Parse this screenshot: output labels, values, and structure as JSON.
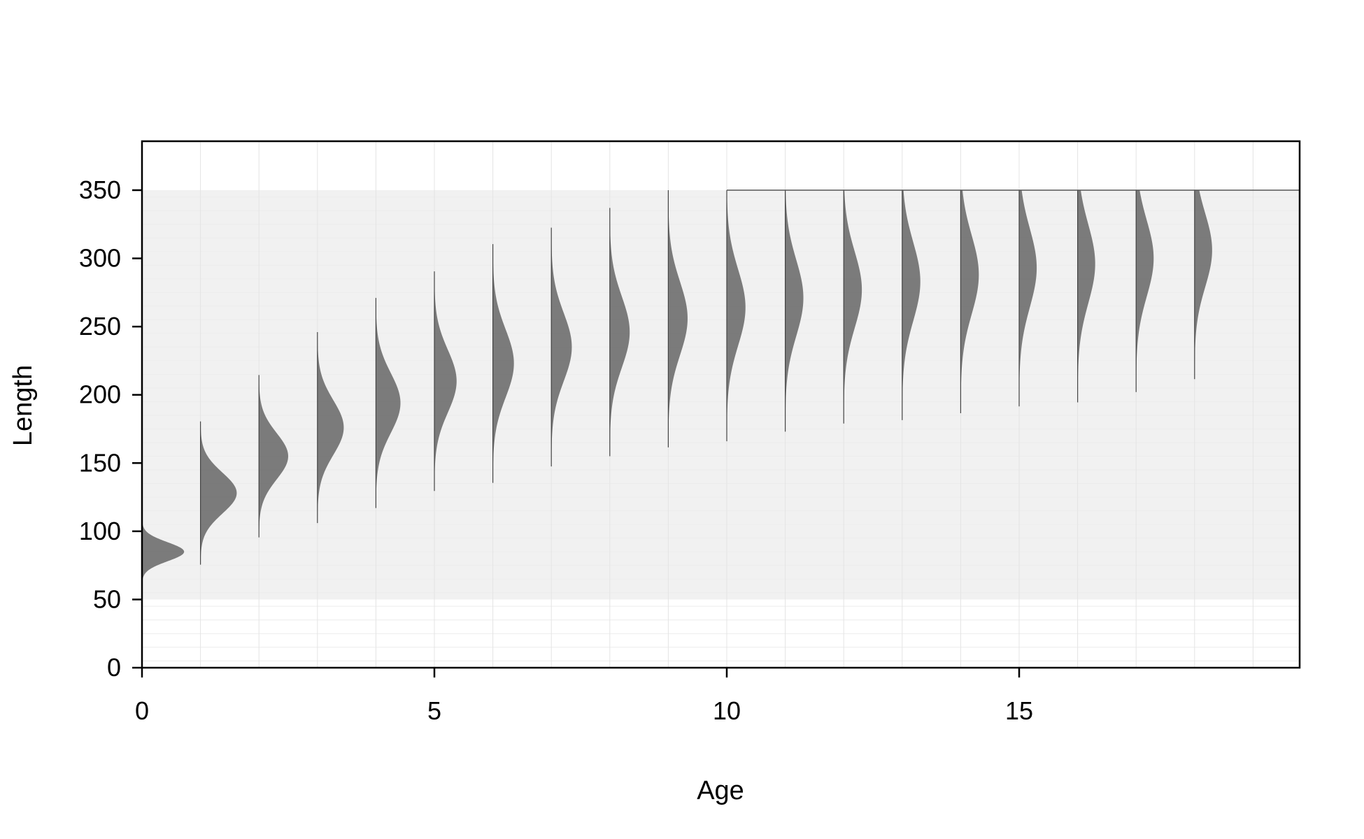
{
  "chart_data": {
    "type": "area",
    "title": "",
    "xlabel": "Age",
    "ylabel": "Length",
    "xlim": [
      0,
      19.8
    ],
    "ylim": [
      0,
      350
    ],
    "x_ticks": [
      "0",
      "5",
      "10",
      "15"
    ],
    "y_ticks": [
      "0",
      "50",
      "100",
      "150",
      "200",
      "250",
      "300",
      "350"
    ],
    "grid": true,
    "band_range": [
      50,
      350
    ],
    "colors": {
      "background_band": "#f1f1f1",
      "density_fill": "#5a5a5a",
      "axis": "#000000",
      "gridline": "#e4e4e4"
    },
    "series": [
      {
        "age": 0,
        "mean": 85,
        "sd": 7,
        "peak_width": 0.72
      },
      {
        "age": 1,
        "mean": 128,
        "sd": 15,
        "peak_width": 0.62
      },
      {
        "age": 2,
        "mean": 155,
        "sd": 17,
        "peak_width": 0.5
      },
      {
        "age": 3,
        "mean": 176,
        "sd": 20,
        "peak_width": 0.45
      },
      {
        "age": 4,
        "mean": 194,
        "sd": 22,
        "peak_width": 0.42
      },
      {
        "age": 5,
        "mean": 210,
        "sd": 23,
        "peak_width": 0.38
      },
      {
        "age": 6,
        "mean": 223,
        "sd": 25,
        "peak_width": 0.36
      },
      {
        "age": 7,
        "mean": 235,
        "sd": 25,
        "peak_width": 0.35
      },
      {
        "age": 8,
        "mean": 246,
        "sd": 26,
        "peak_width": 0.34
      },
      {
        "age": 9,
        "mean": 256,
        "sd": 27,
        "peak_width": 0.33
      },
      {
        "age": 10,
        "mean": 264,
        "sd": 28,
        "peak_width": 0.32
      },
      {
        "age": 11,
        "mean": 271,
        "sd": 28,
        "peak_width": 0.31
      },
      {
        "age": 12,
        "mean": 277,
        "sd": 28,
        "peak_width": 0.31
      },
      {
        "age": 13,
        "mean": 283,
        "sd": 29,
        "peak_width": 0.31
      },
      {
        "age": 14,
        "mean": 288,
        "sd": 29,
        "peak_width": 0.31
      },
      {
        "age": 15,
        "mean": 293,
        "sd": 29,
        "peak_width": 0.3
      },
      {
        "age": 16,
        "mean": 296,
        "sd": 29,
        "peak_width": 0.3
      },
      {
        "age": 17,
        "mean": 300,
        "sd": 28,
        "peak_width": 0.3
      },
      {
        "age": 18,
        "mean": 306,
        "sd": 27,
        "peak_width": 0.3
      }
    ]
  }
}
